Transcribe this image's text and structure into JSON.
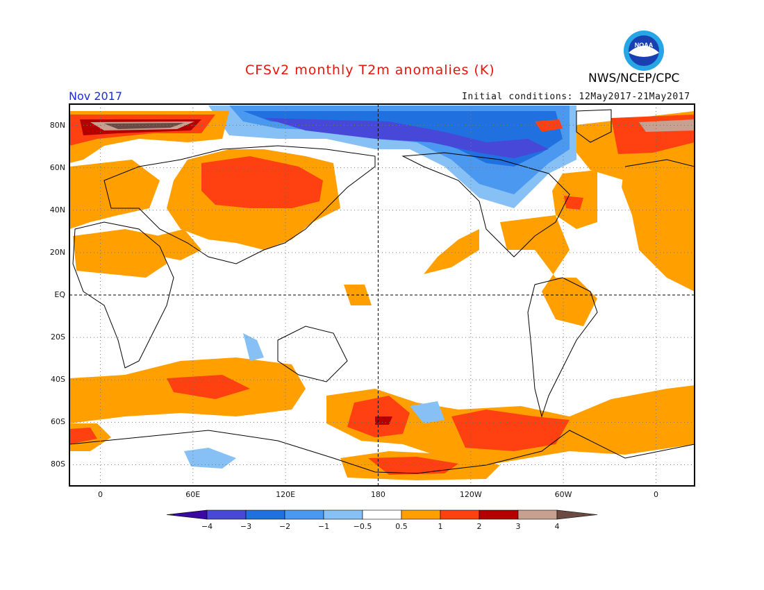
{
  "header": {
    "title": "CFSv2 monthly T2m anomalies (K)",
    "agency": "NWS/NCEP/CPC",
    "month": "Nov 2017",
    "initial_conditions": "Initial conditions: 12May2017-21May2017",
    "logo_text": "NOAA"
  },
  "map": {
    "projection": "cylindrical equidistant",
    "lon_range": [
      -20,
      385
    ],
    "lat_range": [
      -90,
      90
    ],
    "lat_labels": [
      {
        "lat": 80,
        "label": "80N"
      },
      {
        "lat": 60,
        "label": "60N"
      },
      {
        "lat": 40,
        "label": "40N"
      },
      {
        "lat": 20,
        "label": "20N"
      },
      {
        "lat": 0,
        "label": "EQ"
      },
      {
        "lat": -20,
        "label": "20S"
      },
      {
        "lat": -40,
        "label": "40S"
      },
      {
        "lat": -60,
        "label": "60S"
      },
      {
        "lat": -80,
        "label": "80S"
      }
    ],
    "lon_labels": [
      {
        "lon": 0,
        "label": "0"
      },
      {
        "lon": 60,
        "label": "60E"
      },
      {
        "lon": 120,
        "label": "120E"
      },
      {
        "lon": 180,
        "label": "180"
      },
      {
        "lon": 240,
        "label": "120W"
      },
      {
        "lon": 300,
        "label": "60W"
      },
      {
        "lon": 360,
        "label": "0"
      }
    ],
    "reference_lines": [
      "equator",
      "dateline"
    ]
  },
  "colorbar": {
    "levels": [
      "-4",
      "-3",
      "-2",
      "-1",
      "-0.5",
      "0.5",
      "1",
      "2",
      "3",
      "4"
    ],
    "colors": [
      "#3a0aa0",
      "#4848d8",
      "#2070e0",
      "#4a98f0",
      "#86c0f4",
      "#ffffff",
      "#ffa000",
      "#ff4010",
      "#b40000",
      "#c8a090",
      "#6a4a42"
    ]
  }
}
